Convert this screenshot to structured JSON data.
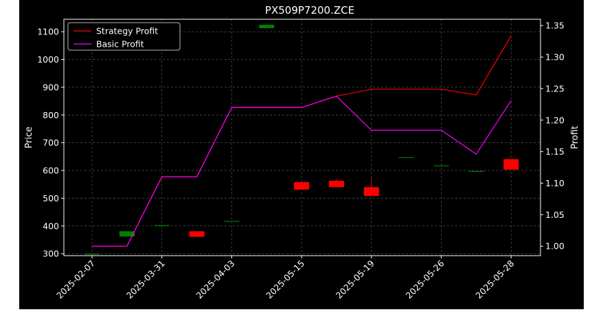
{
  "chart_data": {
    "type": "candlestick",
    "title": "PX509P7200.ZCE",
    "ylabel": "Price",
    "ylabel_right": "Profit",
    "ylim": [
      293,
      1145
    ],
    "ylim_right": [
      0.985,
      1.36
    ],
    "yticks": [
      300,
      400,
      500,
      600,
      700,
      800,
      900,
      1000,
      1100
    ],
    "yticks_right": [
      "1.00",
      "1.05",
      "1.10",
      "1.15",
      "1.20",
      "1.25",
      "1.30",
      "1.35"
    ],
    "grid": true,
    "legend_position": "top-left",
    "categories": [
      "2025-02-07",
      "2025-03-31",
      "2025-04-03",
      "2025-05-15",
      "2025-05-19",
      "2025-05-26",
      "2025-05-28"
    ],
    "candles": [
      {
        "x": 0,
        "open": 300,
        "close": 300,
        "high": 300,
        "low": 300
      },
      {
        "x": 0.5,
        "open": 362,
        "close": 381,
        "high": 381,
        "low": 362
      },
      {
        "x": 1,
        "open": 403,
        "close": 403,
        "high": 403,
        "low": 403
      },
      {
        "x": 1.5,
        "open": 381,
        "close": 361,
        "high": 381,
        "low": 361
      },
      {
        "x": 2,
        "open": 418,
        "close": 418,
        "high": 418,
        "low": 418
      },
      {
        "x": 2.5,
        "open": 1113,
        "close": 1125,
        "high": 1125,
        "low": 1113
      },
      {
        "x": 3,
        "open": 558,
        "close": 531,
        "high": 558,
        "low": 531
      },
      {
        "x": 3.5,
        "open": 563,
        "close": 540,
        "high": 570,
        "low": 540
      },
      {
        "x": 4,
        "open": 540,
        "close": 508,
        "high": 573,
        "low": 508
      },
      {
        "x": 4.5,
        "open": 648,
        "close": 648,
        "high": 648,
        "low": 648
      },
      {
        "x": 5,
        "open": 618,
        "close": 618,
        "high": 618,
        "low": 618
      },
      {
        "x": 5.5,
        "open": 598,
        "close": 598,
        "high": 598,
        "low": 598
      },
      {
        "x": 6,
        "open": 641,
        "close": 603,
        "high": 641,
        "low": 603
      }
    ],
    "series": [
      {
        "name": "Strategy Profit",
        "color": "#ff0000",
        "axis": "right",
        "x": [
          0,
          0.5,
          1,
          1.5,
          2,
          2.5,
          3,
          3.5,
          4,
          4.5,
          5,
          5.5,
          6
        ],
        "values": [
          1.0,
          1.0,
          1.11,
          1.11,
          1.22,
          1.22,
          1.22,
          1.238,
          1.249,
          1.249,
          1.249,
          1.24,
          1.334
        ]
      },
      {
        "name": "Basic Profit",
        "color": "#ff00ff",
        "axis": "right",
        "x": [
          0,
          0.5,
          1,
          1.5,
          2,
          2.5,
          3,
          3.5,
          4,
          4.5,
          5,
          5.5,
          6
        ],
        "values": [
          1.0,
          1.0,
          1.11,
          1.11,
          1.22,
          1.22,
          1.22,
          1.238,
          1.184,
          1.184,
          1.184,
          1.146,
          1.231
        ]
      }
    ],
    "colors": {
      "up": "#008000",
      "down": "#ff0000",
      "background": "#000000",
      "grid": "#808080"
    }
  }
}
